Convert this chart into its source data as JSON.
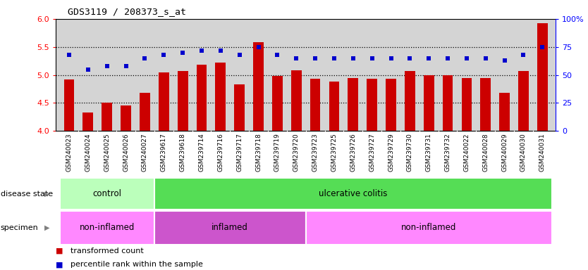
{
  "title": "GDS3119 / 208373_s_at",
  "samples": [
    "GSM240023",
    "GSM240024",
    "GSM240025",
    "GSM240026",
    "GSM240027",
    "GSM239617",
    "GSM239618",
    "GSM239714",
    "GSM239716",
    "GSM239717",
    "GSM239718",
    "GSM239719",
    "GSM239720",
    "GSM239723",
    "GSM239725",
    "GSM239726",
    "GSM239727",
    "GSM239729",
    "GSM239730",
    "GSM239731",
    "GSM239732",
    "GSM240022",
    "GSM240028",
    "GSM240029",
    "GSM240030",
    "GSM240031"
  ],
  "bar_values": [
    4.92,
    4.33,
    4.5,
    4.45,
    4.68,
    5.05,
    5.07,
    5.18,
    5.22,
    4.83,
    5.58,
    4.98,
    5.08,
    4.93,
    4.88,
    4.95,
    4.93,
    4.93,
    5.07,
    5.0,
    5.0,
    4.95,
    4.95,
    4.68,
    5.07,
    5.92
  ],
  "percentile_values": [
    68,
    55,
    58,
    58,
    65,
    68,
    70,
    72,
    72,
    68,
    75,
    68,
    65,
    65,
    65,
    65,
    65,
    65,
    65,
    65,
    65,
    65,
    65,
    63,
    68,
    75
  ],
  "bar_color": "#cc0000",
  "percentile_color": "#0000cc",
  "ylim_left": [
    4.0,
    6.0
  ],
  "ylim_right": [
    0,
    100
  ],
  "yticks_left": [
    4.0,
    4.5,
    5.0,
    5.5,
    6.0
  ],
  "yticks_right": [
    0,
    25,
    50,
    75,
    100
  ],
  "ytick_labels_right": [
    "0",
    "25",
    "50",
    "75",
    "100%"
  ],
  "hlines": [
    4.5,
    5.0,
    5.5
  ],
  "disease_state_groups": [
    {
      "label": "control",
      "start": 0,
      "end": 5,
      "color": "#bbffbb"
    },
    {
      "label": "ulcerative colitis",
      "start": 5,
      "end": 26,
      "color": "#55dd55"
    }
  ],
  "specimen_groups": [
    {
      "label": "non-inflamed",
      "start": 0,
      "end": 5,
      "color": "#ff88ff"
    },
    {
      "label": "inflamed",
      "start": 5,
      "end": 13,
      "color": "#cc55cc"
    },
    {
      "label": "non-inflamed",
      "start": 13,
      "end": 26,
      "color": "#ff88ff"
    }
  ],
  "legend_items": [
    {
      "label": "transformed count",
      "color": "#cc0000"
    },
    {
      "label": "percentile rank within the sample",
      "color": "#0000cc"
    }
  ],
  "background_color": "#ffffff",
  "plot_bg_color": "#d4d4d4",
  "xtick_bg_color": "#c8c8c8"
}
